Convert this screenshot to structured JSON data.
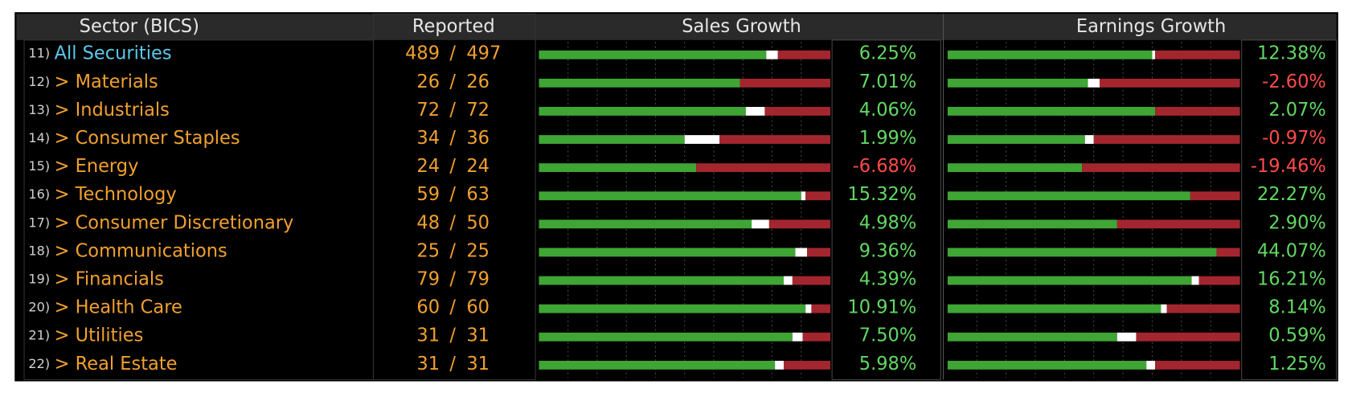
{
  "table": {
    "header": [
      "Sector (BICS)",
      "Reported",
      "Sales Growth",
      "Earnings Growth"
    ],
    "rows": [
      {
        "num": "11)",
        "name": "All Securities",
        "reported": "489",
        "total": "497",
        "sep": "/",
        "sales_split": [
          78,
          4,
          18
        ],
        "sales_growth": "6.25%",
        "earnings_split": [
          70,
          1,
          29
        ],
        "earnings_growth": "12.38%"
      },
      {
        "num": "12)",
        "name": "> Materials",
        "reported": "26",
        "total": "26",
        "sep": "/",
        "sales_split": [
          69,
          0,
          31
        ],
        "sales_growth": "7.01%",
        "earnings_split": [
          48,
          4,
          48
        ],
        "earnings_growth": "-2.60%"
      },
      {
        "num": "13)",
        "name": "> Industrials",
        "reported": "72",
        "total": "72",
        "sep": "/",
        "sales_split": [
          71,
          6.5,
          22.5
        ],
        "sales_growth": "4.06%",
        "earnings_split": [
          71,
          0,
          29
        ],
        "earnings_growth": "2.07%"
      },
      {
        "num": "14)",
        "name": "> Consumer Staples",
        "reported": "34",
        "total": "36",
        "sep": "/",
        "sales_split": [
          50,
          12,
          38
        ],
        "sales_growth": "1.99%",
        "earnings_split": [
          47,
          3,
          50
        ],
        "earnings_growth": "-0.97%"
      },
      {
        "num": "15)",
        "name": "> Energy",
        "reported": "24",
        "total": "24",
        "sep": "/",
        "sales_split": [
          54,
          0,
          46
        ],
        "sales_growth": "-6.68%",
        "earnings_split": [
          46,
          0,
          54
        ],
        "earnings_growth": "-19.46%"
      },
      {
        "num": "16)",
        "name": "> Technology",
        "reported": "59",
        "total": "63",
        "sep": "/",
        "sales_split": [
          90,
          1.5,
          8.5
        ],
        "sales_growth": "15.32%",
        "earnings_split": [
          83,
          0,
          17
        ],
        "earnings_growth": "22.27%"
      },
      {
        "num": "17)",
        "name": "> Consumer Discretionary",
        "reported": "48",
        "total": "50",
        "sep": "/",
        "sales_split": [
          73,
          6,
          21
        ],
        "sales_growth": "4.98%",
        "earnings_split": [
          58,
          0,
          42
        ],
        "earnings_growth": "2.90%"
      },
      {
        "num": "18)",
        "name": "> Communications",
        "reported": "25",
        "total": "25",
        "sep": "/",
        "sales_split": [
          88,
          4,
          8
        ],
        "sales_growth": "9.36%",
        "earnings_split": [
          92,
          0,
          8
        ],
        "earnings_growth": "44.07%"
      },
      {
        "num": "19)",
        "name": "> Financials",
        "reported": "79",
        "total": "79",
        "sep": "/",
        "sales_split": [
          84,
          3,
          13
        ],
        "sales_growth": "4.39%",
        "earnings_split": [
          83.5,
          2.5,
          14
        ],
        "earnings_growth": "16.21%"
      },
      {
        "num": "20)",
        "name": "> Health Care",
        "reported": "60",
        "total": "60",
        "sep": "/",
        "sales_split": [
          91.5,
          2,
          6.5
        ],
        "sales_growth": "10.91%",
        "earnings_split": [
          73,
          2,
          25
        ],
        "earnings_growth": "8.14%"
      },
      {
        "num": "21)",
        "name": "> Utilities",
        "reported": "31",
        "total": "31",
        "sep": "/",
        "sales_split": [
          87,
          3.5,
          9.5
        ],
        "sales_growth": "7.50%",
        "earnings_split": [
          58,
          6.5,
          35.5
        ],
        "earnings_growth": "0.59%"
      },
      {
        "num": "22)",
        "name": "> Real Estate",
        "reported": "31",
        "total": "31",
        "sep": "/",
        "sales_split": [
          81,
          3,
          16
        ],
        "sales_growth": "5.98%",
        "earnings_split": [
          68,
          3,
          29
        ],
        "earnings_growth": "1.25%"
      }
    ],
    "split_colors": [
      "#3fa535",
      "#ffffff",
      "#a3262f"
    ]
  }
}
